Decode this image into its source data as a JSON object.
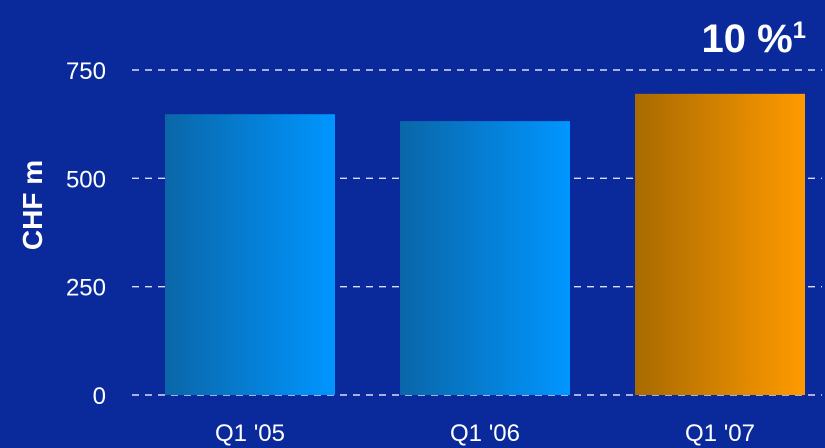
{
  "chart_data": {
    "type": "bar",
    "categories": [
      "Q1 '05",
      "Q1 '06",
      "Q1 '07"
    ],
    "values": [
      648,
      632,
      695
    ],
    "ylabel": "CHF m",
    "xlabel": "",
    "ylim": [
      0,
      750
    ],
    "yticks": [
      0,
      250,
      500,
      750
    ],
    "grid": true,
    "annotation": {
      "text": "10 %",
      "superscript": "1"
    },
    "colors": {
      "background": "#0a2a9c",
      "bar_standard_dark": "#0a66a8",
      "bar_standard_light": "#0096ff",
      "bar_highlight_dark": "#a86a00",
      "bar_highlight_light": "#ff9a00"
    },
    "highlight_index": 2
  }
}
